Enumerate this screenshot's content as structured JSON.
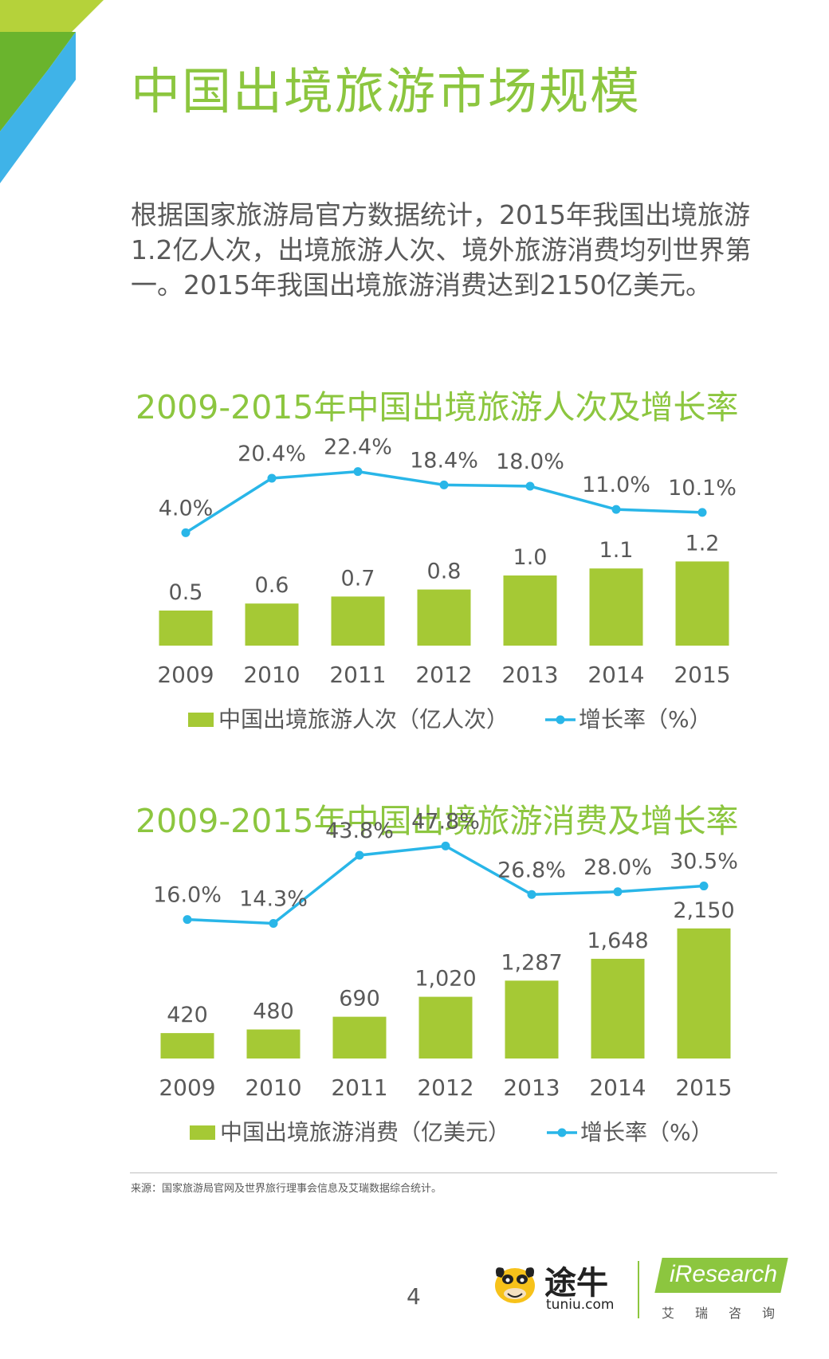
{
  "page": {
    "title": "中国出境旅游市场规模",
    "intro": "根据国家旅游局官方数据统计，2015年我国出境旅游1.2亿人次，出境旅游人次、境外旅游消费均列世界第一。2015年我国出境旅游消费达到2150亿美元。",
    "source": "来源：国家旅游局官网及世界旅行理事会信息及艾瑞数据综合统计。",
    "page_number": "4"
  },
  "logos": {
    "tuniu_name": "途牛",
    "tuniu_url": "tuniu.com",
    "iresearch_name": "iResearch",
    "iresearch_cn": "艾瑞咨询"
  },
  "colors": {
    "title_green": "#8cc63f",
    "bar_green": "#a5c935",
    "line_blue": "#29b6e8",
    "text_gray": "#595959",
    "corner_light_green": "#b5d23a",
    "corner_green": "#6ab42d",
    "corner_blue": "#3fb3e8"
  },
  "chart_data": [
    {
      "type": "bar",
      "title": "2009-2015年中国出境旅游人次及增长率",
      "categories": [
        "2009",
        "2010",
        "2011",
        "2012",
        "2013",
        "2014",
        "2015"
      ],
      "series": [
        {
          "name": "中国出境旅游人次（亿人次）",
          "type": "bar",
          "values": [
            0.5,
            0.6,
            0.7,
            0.8,
            1.0,
            1.1,
            1.2
          ],
          "labels": [
            "0.5",
            "0.6",
            "0.7",
            "0.8",
            "1.0",
            "1.1",
            "1.2"
          ]
        },
        {
          "name": "增长率（%）",
          "type": "line",
          "values": [
            4.0,
            20.4,
            22.4,
            18.4,
            18.0,
            11.0,
            10.1
          ],
          "labels": [
            "4.0%",
            "20.4%",
            "22.4%",
            "18.4%",
            "18.0%",
            "11.0%",
            "10.1%"
          ]
        }
      ],
      "bar_range": [
        0,
        1.25
      ],
      "line_range": [
        0,
        24
      ],
      "legend_position": "bottom",
      "grid": false
    },
    {
      "type": "bar",
      "title": "2009-2015年中国出境旅游消费及增长率",
      "categories": [
        "2009",
        "2010",
        "2011",
        "2012",
        "2013",
        "2014",
        "2015"
      ],
      "series": [
        {
          "name": "中国出境旅游消费（亿美元）",
          "type": "bar",
          "values": [
            420,
            480,
            690,
            1020,
            1287,
            1648,
            2150
          ],
          "labels": [
            "420",
            "480",
            "690",
            "1,020",
            "1,287",
            "1,648",
            "2,150"
          ]
        },
        {
          "name": "增长率（%）",
          "type": "line",
          "values": [
            16.0,
            14.3,
            43.8,
            47.8,
            26.8,
            28.0,
            30.5
          ],
          "labels": [
            "16.0%",
            "14.3%",
            "43.8%",
            "47.8%",
            "26.8%",
            "28.0%",
            "30.5%"
          ]
        }
      ],
      "bar_range": [
        0,
        2200
      ],
      "line_range": [
        0,
        50
      ],
      "legend_position": "bottom",
      "grid": false
    }
  ]
}
